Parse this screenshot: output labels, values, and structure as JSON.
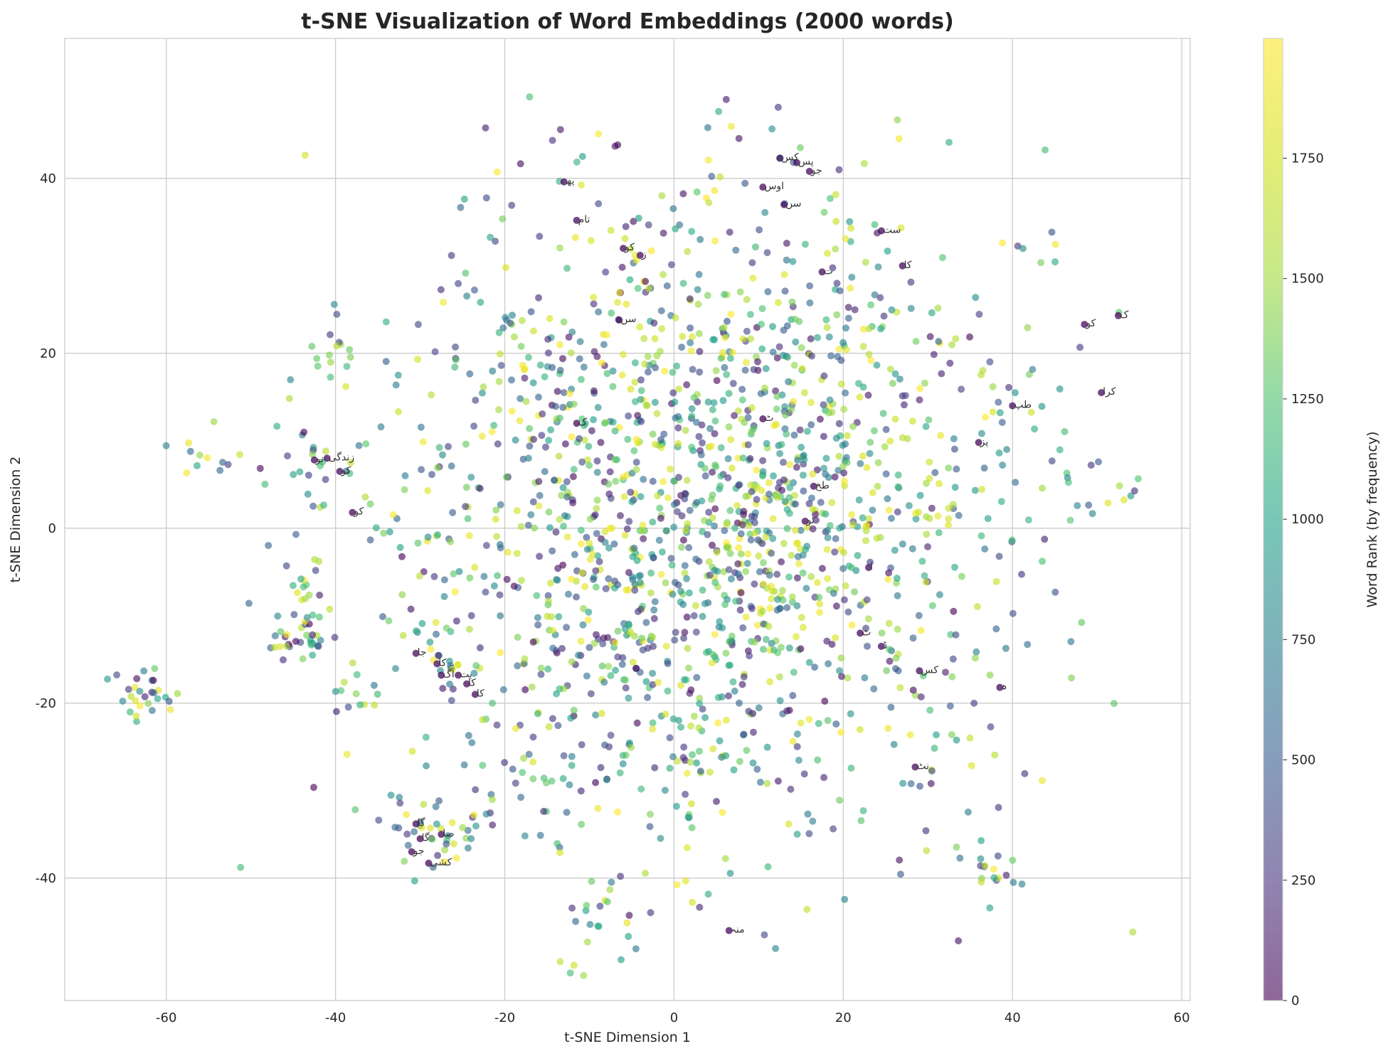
{
  "chart_data": {
    "type": "scatter",
    "title": "t-SNE Visualization of Word Embeddings (2000 words)",
    "xlabel": "t-SNE Dimension 1",
    "ylabel": "t-SNE Dimension 2",
    "xlim": [
      -72,
      61
    ],
    "ylim": [
      -54,
      56
    ],
    "xticks": [
      -60,
      -40,
      -20,
      0,
      20,
      40,
      60
    ],
    "yticks": [
      -40,
      -20,
      0,
      20,
      40
    ],
    "grid": true,
    "colormap": "viridis",
    "colorbar": {
      "label": "Word Rank (by frequency)",
      "range": [
        0,
        1999
      ],
      "ticks": [
        0,
        250,
        500,
        750,
        1000,
        1250,
        1500,
        1750
      ]
    },
    "point_count": 2000,
    "annotations": [
      {
        "text": "کس",
        "x": 12.5,
        "y": 42.3
      },
      {
        "text": "پس",
        "x": 14.5,
        "y": 41.8
      },
      {
        "text": "جو",
        "x": 16.0,
        "y": 40.8
      },
      {
        "text": "اوس",
        "x": 10.5,
        "y": 39.0
      },
      {
        "text": "سں",
        "x": 13.0,
        "y": 37.0
      },
      {
        "text": "پھ",
        "x": -13.0,
        "y": 39.6
      },
      {
        "text": "تام",
        "x": -11.5,
        "y": 35.2
      },
      {
        "text": "ست",
        "x": 24.5,
        "y": 34.0
      },
      {
        "text": "کو",
        "x": -6.0,
        "y": 32.0
      },
      {
        "text": "ز",
        "x": -4.0,
        "y": 31.2
      },
      {
        "text": "کا",
        "x": 27.0,
        "y": 30.0
      },
      {
        "text": "ت",
        "x": 17.5,
        "y": 29.3
      },
      {
        "text": "سں",
        "x": -6.5,
        "y": 23.8
      },
      {
        "text": "کو",
        "x": 48.5,
        "y": 23.3
      },
      {
        "text": "ک",
        "x": 52.5,
        "y": 24.3
      },
      {
        "text": "کرا",
        "x": 50.5,
        "y": 15.5
      },
      {
        "text": "طپ",
        "x": 40.0,
        "y": 14.0
      },
      {
        "text": "ک",
        "x": -11.5,
        "y": 12.0
      },
      {
        "text": "ٹ",
        "x": 10.5,
        "y": 12.5
      },
      {
        "text": "پز",
        "x": 36.0,
        "y": 9.8
      },
      {
        "text": "زندگی",
        "x": -41.0,
        "y": 8.0
      },
      {
        "text": "نو",
        "x": -42.5,
        "y": 7.8
      },
      {
        "text": "کو",
        "x": -39.5,
        "y": 6.5
      },
      {
        "text": "طخ",
        "x": 16.5,
        "y": 4.8
      },
      {
        "text": "کو",
        "x": -38.0,
        "y": 1.8
      },
      {
        "text": "ٹو",
        "x": 15.5,
        "y": 0.8
      },
      {
        "text": "ا",
        "x": 23.0,
        "y": -4.5
      },
      {
        "text": "ٹ",
        "x": 22.0,
        "y": -12.0
      },
      {
        "text": "ڈ",
        "x": 24.5,
        "y": -13.5
      },
      {
        "text": "جا",
        "x": -30.5,
        "y": -14.3
      },
      {
        "text": "کا",
        "x": -28.0,
        "y": -15.5
      },
      {
        "text": "آگ",
        "x": -27.5,
        "y": -16.8
      },
      {
        "text": "یت",
        "x": -25.5,
        "y": -16.8
      },
      {
        "text": "کا",
        "x": -24.5,
        "y": -17.8
      },
      {
        "text": "کا",
        "x": -23.5,
        "y": -19.0
      },
      {
        "text": "کس",
        "x": 29.0,
        "y": -16.3
      },
      {
        "text": "ہ",
        "x": 38.5,
        "y": -18.2
      },
      {
        "text": "نٹ",
        "x": 28.5,
        "y": -27.3
      },
      {
        "text": "گا",
        "x": -30.5,
        "y": -33.8
      },
      {
        "text": "صا",
        "x": -27.5,
        "y": -35.0
      },
      {
        "text": "گا",
        "x": -30.0,
        "y": -35.5
      },
      {
        "text": "جو",
        "x": -31.0,
        "y": -37.0
      },
      {
        "text": "کشی",
        "x": -29.0,
        "y": -38.3
      },
      {
        "text": "منہ",
        "x": 6.5,
        "y": -46.0
      }
    ]
  }
}
